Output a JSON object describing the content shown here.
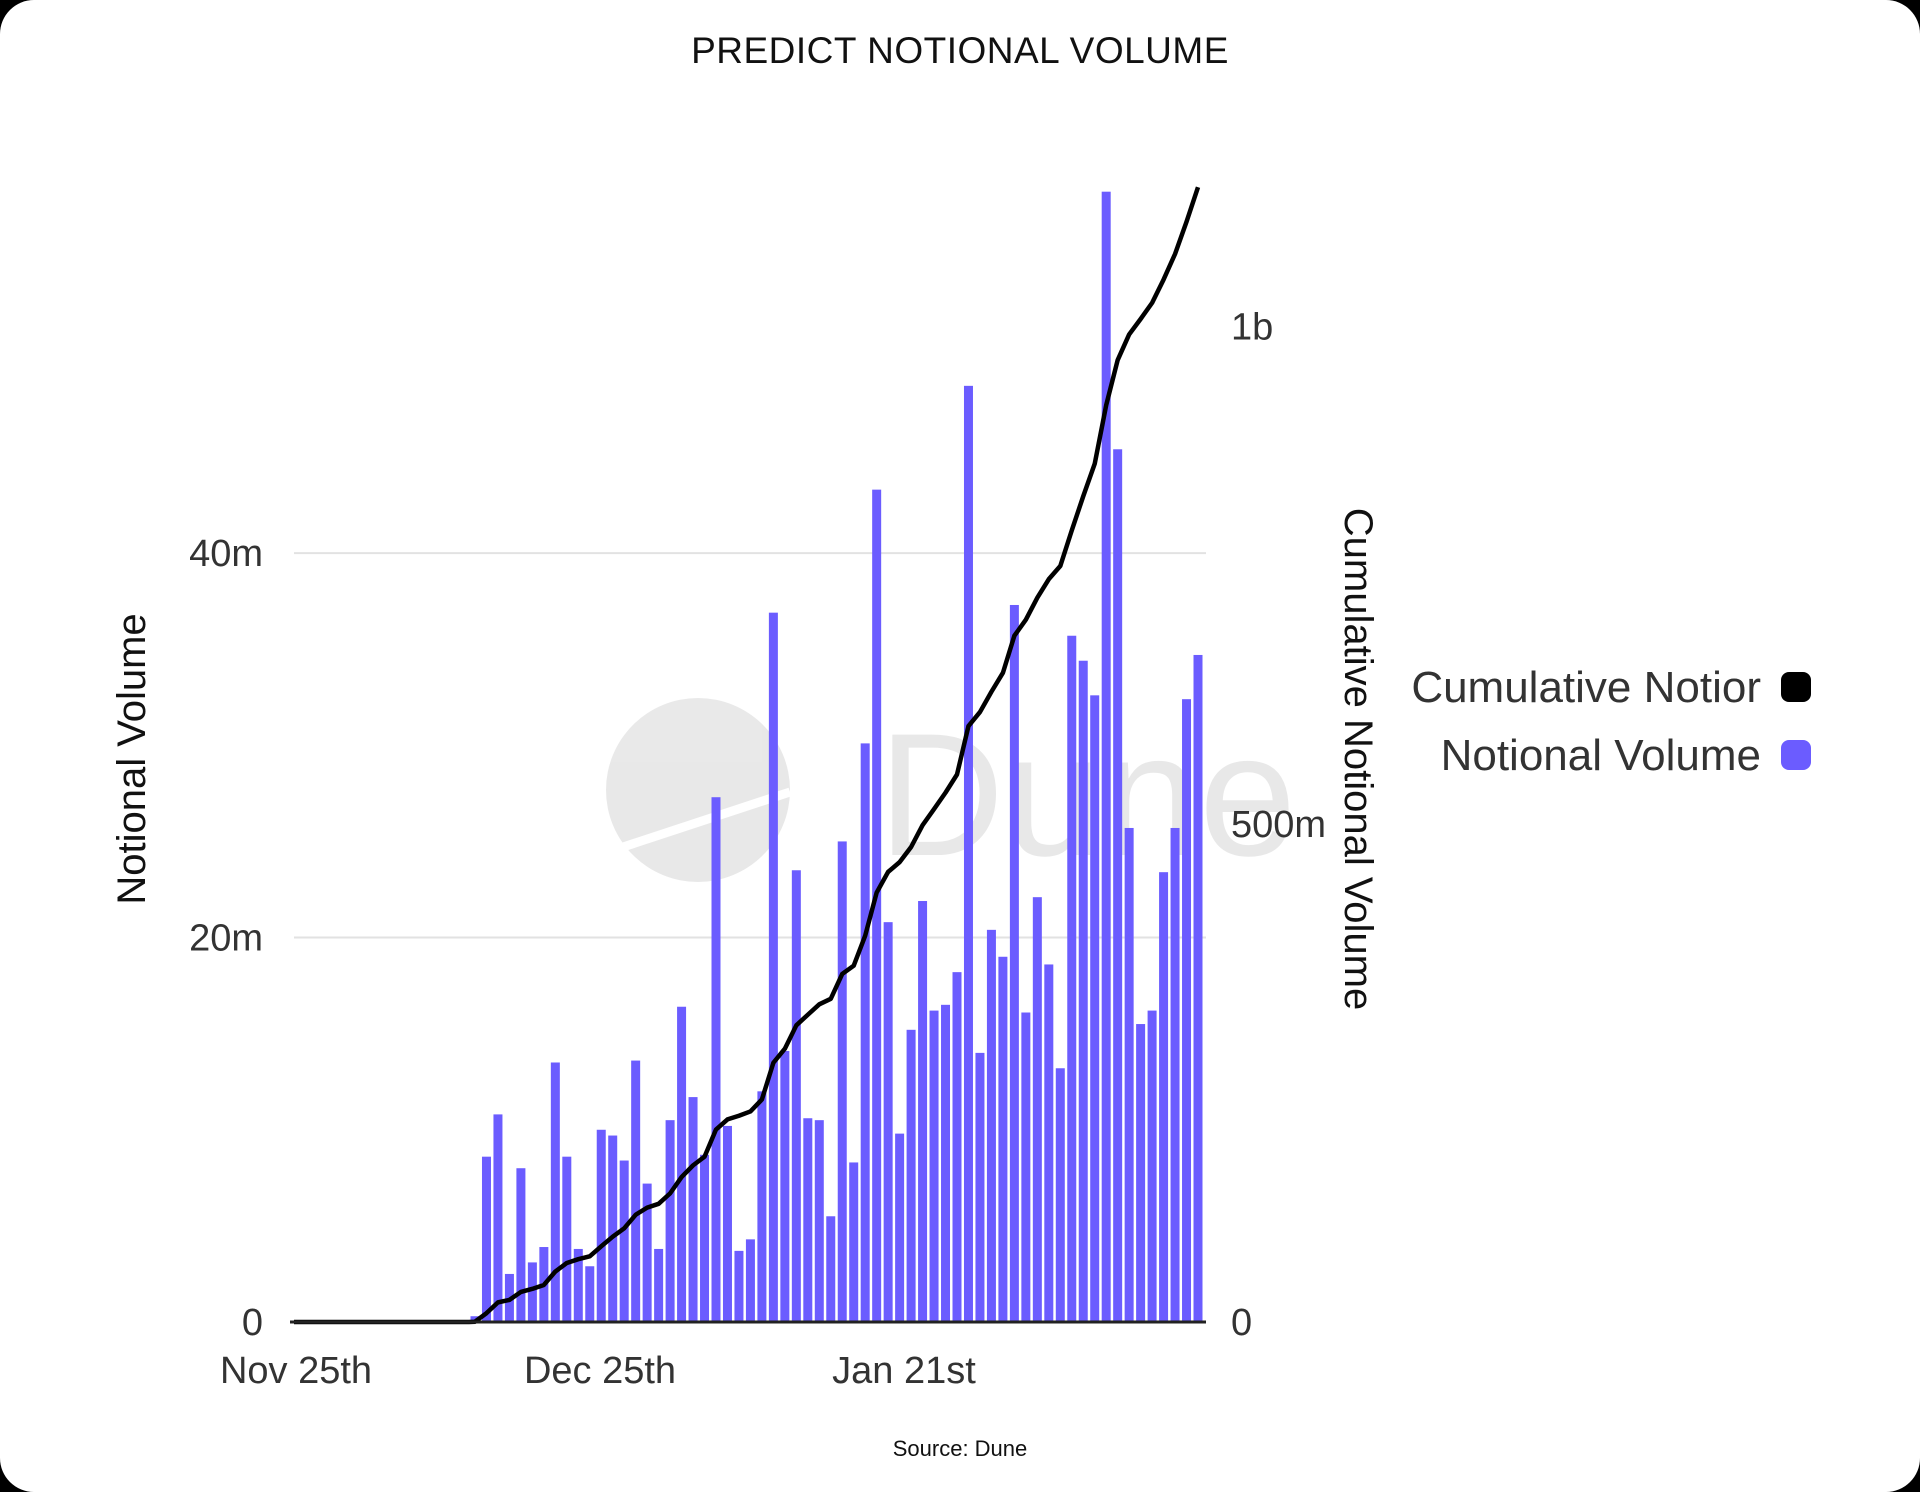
{
  "title": "PREDICT NOTIONAL VOLUME",
  "source": "Source: Dune",
  "watermark": "Dune",
  "chart_data": {
    "type": "bar+line",
    "title": "PREDICT NOTIONAL VOLUME",
    "x_tick_labels": [
      "Nov 25th",
      "Dec 25th",
      "Jan 21st"
    ],
    "ylabel": "Notional Volume",
    "ylabel_right": "Cumulative Notional Volume",
    "y_ticks": [
      "0",
      "20m",
      "40m"
    ],
    "y_tick_values": [
      0,
      20,
      40
    ],
    "y_right_ticks": [
      "0",
      "500m",
      "1b"
    ],
    "y_right_tick_values": [
      0,
      500,
      1000
    ],
    "ylim": [
      0,
      59.2
    ],
    "ylim_right": [
      0,
      1143
    ],
    "units": "millions",
    "grid": true,
    "legend_position": "right",
    "legend": [
      {
        "label": "Cumulative Notior",
        "color": "#000000"
      },
      {
        "label": "Notional Volume",
        "color": "#6b5cff"
      }
    ],
    "series": [
      {
        "name": "Notional Volume",
        "type": "bar",
        "axis": "left",
        "color": "#6b5cff",
        "values": [
          0.3,
          8.6,
          10.8,
          2.5,
          8.0,
          3.1,
          3.9,
          13.5,
          8.6,
          3.8,
          2.9,
          10.0,
          9.7,
          8.4,
          13.6,
          7.2,
          3.8,
          10.5,
          16.4,
          11.7,
          8.7,
          27.3,
          10.2,
          3.7,
          4.3,
          12.0,
          36.9,
          14.1,
          23.5,
          10.6,
          10.5,
          5.5,
          25.0,
          8.3,
          30.1,
          43.3,
          20.8,
          9.8,
          15.2,
          21.9,
          16.2,
          16.5,
          18.2,
          48.7,
          14.0,
          20.4,
          19.0,
          37.3,
          16.1,
          22.1,
          18.6,
          13.2,
          35.7,
          34.4,
          32.6,
          58.8,
          45.4,
          25.7,
          15.5,
          16.2,
          23.4,
          25.7,
          32.4,
          34.7
        ]
      },
      {
        "name": "Cumulative Notional Volume",
        "type": "line",
        "axis": "right",
        "color": "#000000",
        "values": [
          0.3,
          8.9,
          19.7,
          22.2,
          30.2,
          33.3,
          37.2,
          50.7,
          59.3,
          63.1,
          66.0,
          76.0,
          85.7,
          94.1,
          107.7,
          114.9,
          118.7,
          129.2,
          145.6,
          157.3,
          166.0,
          193.3,
          203.5,
          207.2,
          211.5,
          223.5,
          260.4,
          274.5,
          298.0,
          308.6,
          319.1,
          324.6,
          349.6,
          357.9,
          388.0,
          431.3,
          452.1,
          461.9,
          477.1,
          499.0,
          515.2,
          531.7,
          549.9,
          598.6,
          612.6,
          633.0,
          652.0,
          689.3,
          705.4,
          727.5,
          746.1,
          759.3,
          795.0,
          829.4,
          862.0,
          920.8,
          966.2,
          991.9,
          1007.4,
          1023.6,
          1047.0,
          1072.7,
          1105.1,
          1139.8
        ]
      }
    ]
  }
}
